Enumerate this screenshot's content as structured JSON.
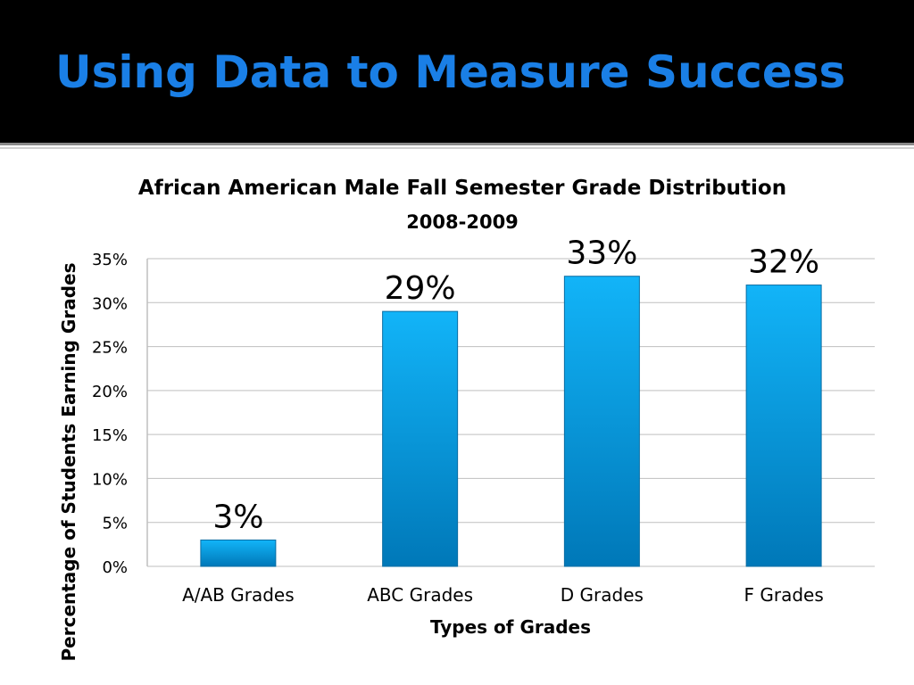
{
  "slide": {
    "title": "Using Data to Measure Success"
  },
  "colors": {
    "bar_top": "#12b4f8",
    "bar_bottom": "#0078b8",
    "header": "#000000",
    "title": "#1a7fe6"
  },
  "chart_data": {
    "type": "bar",
    "title": "African American Male Fall Semester Grade Distribution",
    "subtitle": "2008-2009",
    "xlabel": "Types of Grades",
    "ylabel": "Percentage of Students Earning Grades",
    "categories": [
      "A/AB Grades",
      "ABC Grades",
      "D Grades",
      "F Grades"
    ],
    "values": [
      3,
      29,
      33,
      32
    ],
    "data_labels": [
      "3%",
      "29%",
      "33%",
      "32%"
    ],
    "ylim": [
      0,
      35
    ],
    "yticks": [
      0,
      5,
      10,
      15,
      20,
      25,
      30,
      35
    ],
    "ytick_labels": [
      "0%",
      "5%",
      "10%",
      "15%",
      "20%",
      "25%",
      "30%",
      "35%"
    ],
    "grid": true,
    "legend": "none"
  }
}
